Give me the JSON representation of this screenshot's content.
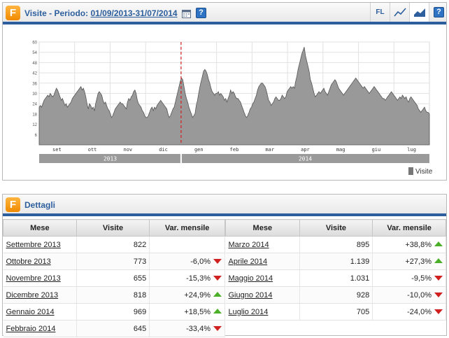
{
  "header": {
    "logo_letter": "F",
    "title_prefix": "Visite - Periodo:",
    "period": "01/09/2013-31/07/2014",
    "toolbar": {
      "fl_label": "FL",
      "buttons": [
        "calendar-icon",
        "help-icon",
        "fl-button",
        "line-chart-icon",
        "area-chart-icon",
        "help-icon"
      ],
      "active": "area-chart-icon"
    },
    "help_label": "?"
  },
  "chart_data": {
    "type": "area",
    "y_ticks": [
      6,
      12,
      18,
      24,
      30,
      36,
      42,
      48,
      54,
      60
    ],
    "ylim": [
      0,
      60
    ],
    "month_labels": [
      "set",
      "ott",
      "nov",
      "dic",
      "gen",
      "feb",
      "mar",
      "apr",
      "mag",
      "giu",
      "lug"
    ],
    "year_labels": [
      "2013",
      "2014"
    ],
    "legend": "Visite",
    "series": [
      {
        "name": "Visite",
        "values": [
          22,
          23,
          22,
          24,
          26,
          27,
          28,
          29,
          28,
          30,
          29,
          28,
          29,
          31,
          33,
          32,
          30,
          28,
          26,
          27,
          25,
          23,
          24,
          22,
          23,
          24,
          25,
          27,
          28,
          29,
          30,
          31,
          32,
          33,
          34,
          32,
          33,
          31,
          28,
          24,
          21,
          24,
          23,
          21,
          22,
          20,
          24,
          27,
          30,
          31,
          30,
          29,
          26,
          24,
          25,
          23,
          21,
          20,
          18,
          16,
          17,
          19,
          21,
          22,
          23,
          24,
          25,
          24,
          24,
          23,
          22,
          21,
          25,
          27,
          26,
          28,
          29,
          31,
          32,
          30,
          26,
          24,
          23,
          22,
          20,
          19,
          17,
          16,
          16,
          17,
          19,
          21,
          22,
          20,
          22,
          21,
          23,
          24,
          25,
          26,
          25,
          24,
          23,
          22,
          21,
          18,
          16,
          17,
          19,
          21,
          22,
          25,
          28,
          31,
          34,
          37,
          39,
          38,
          34,
          30,
          27,
          25,
          22,
          20,
          18,
          16,
          17,
          18,
          23,
          26,
          30,
          34,
          37,
          40,
          43,
          44,
          43,
          41,
          38,
          36,
          33,
          31,
          30,
          29,
          30,
          30,
          31,
          29,
          30,
          29,
          28,
          26,
          27,
          25,
          27,
          29,
          32,
          30,
          31,
          30,
          28,
          27,
          27,
          26,
          25,
          23,
          21,
          19,
          17,
          16,
          17,
          19,
          21,
          22,
          24,
          25,
          27,
          29,
          32,
          34,
          35,
          36,
          36,
          35,
          34,
          32,
          29,
          26,
          25,
          23,
          24,
          25,
          27,
          28,
          27,
          26,
          26,
          27,
          29,
          28,
          27,
          28,
          31,
          32,
          33,
          34,
          33,
          34,
          33,
          37,
          40,
          44,
          47,
          50,
          53,
          55,
          57,
          52,
          49,
          46,
          43,
          38,
          36,
          33,
          30,
          28,
          29,
          30,
          31,
          30,
          31,
          32,
          33,
          31,
          30,
          29,
          31,
          33,
          35,
          36,
          37,
          38,
          37,
          35,
          33,
          32,
          31,
          30,
          29,
          30,
          31,
          32,
          33,
          34,
          35,
          36,
          37,
          38,
          39,
          38,
          37,
          36,
          35,
          34,
          33,
          34,
          33,
          32,
          31,
          30,
          31,
          32,
          33,
          34,
          33,
          32,
          31,
          30,
          29,
          28,
          27,
          27,
          26,
          27,
          28,
          29,
          30,
          31,
          30,
          29,
          28,
          27,
          26,
          27,
          28,
          27,
          29,
          28,
          27,
          28,
          26,
          25,
          27,
          28,
          27,
          26,
          25,
          24,
          23,
          21,
          20,
          19,
          20,
          21,
          22,
          20,
          19,
          19,
          18
        ]
      }
    ]
  },
  "details": {
    "title": "Dettagli",
    "columns": [
      "Mese",
      "Visite",
      "Var. mensile"
    ],
    "left_rows": [
      {
        "mese": "Settembre 2013",
        "visite": "822",
        "var": "",
        "dir": ""
      },
      {
        "mese": "Ottobre 2013",
        "visite": "773",
        "var": "-6,0%",
        "dir": "down"
      },
      {
        "mese": "Novembre 2013",
        "visite": "655",
        "var": "-15,3%",
        "dir": "down"
      },
      {
        "mese": "Dicembre 2013",
        "visite": "818",
        "var": "+24,9%",
        "dir": "up"
      },
      {
        "mese": "Gennaio 2014",
        "visite": "969",
        "var": "+18,5%",
        "dir": "up"
      },
      {
        "mese": "Febbraio 2014",
        "visite": "645",
        "var": "-33,4%",
        "dir": "down"
      }
    ],
    "right_rows": [
      {
        "mese": "Marzo 2014",
        "visite": "895",
        "var": "+38,8%",
        "dir": "up"
      },
      {
        "mese": "Aprile 2014",
        "visite": "1.139",
        "var": "+27,3%",
        "dir": "up"
      },
      {
        "mese": "Maggio 2014",
        "visite": "1.031",
        "var": "-9,5%",
        "dir": "down"
      },
      {
        "mese": "Giugno 2014",
        "visite": "928",
        "var": "-10,0%",
        "dir": "down"
      },
      {
        "mese": "Luglio 2014",
        "visite": "705",
        "var": "-24,0%",
        "dir": "down"
      }
    ]
  }
}
